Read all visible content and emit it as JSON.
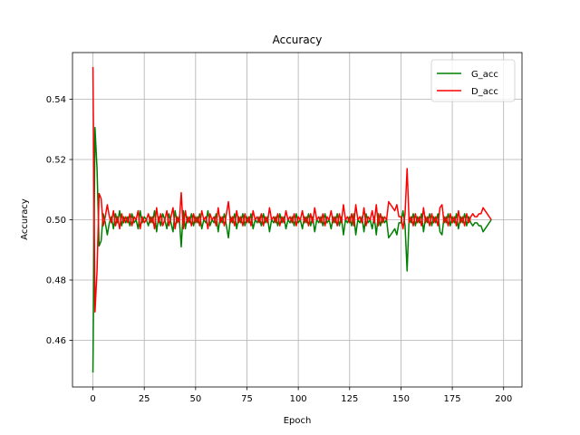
{
  "chart_data": {
    "type": "line",
    "title": "Accuracy",
    "xlabel": "Epoch",
    "ylabel": "Accuracy",
    "xlim": [
      -9.95,
      208.95
    ],
    "ylim": [
      0.4445,
      0.5555
    ],
    "xticks": [
      0,
      25,
      50,
      75,
      100,
      125,
      150,
      175,
      200
    ],
    "yticks": [
      0.46,
      0.48,
      0.5,
      0.52,
      0.54
    ],
    "ytick_labels": [
      "0.46",
      "0.48",
      "0.50",
      "0.52",
      "0.54"
    ],
    "grid": true,
    "legend_position": "upper right",
    "series": [
      {
        "name": "G_acc",
        "color": "#008000",
        "values": [
          0.4493,
          0.5306,
          0.517,
          0.4913,
          0.493,
          0.502,
          0.499,
          0.495,
          0.499,
          0.501,
          0.497,
          0.502,
          0.499,
          0.503,
          0.498,
          0.501,
          0.499,
          0.501,
          0.498,
          0.502,
          0.499,
          0.5,
          0.497,
          0.503,
          0.499,
          0.501,
          0.5,
          0.498,
          0.501,
          0.499,
          0.503,
          0.496,
          0.501,
          0.498,
          0.502,
          0.5,
          0.497,
          0.502,
          0.499,
          0.496,
          0.503,
          0.499,
          0.501,
          0.491,
          0.503,
          0.497,
          0.501,
          0.499,
          0.502,
          0.498,
          0.501,
          0.499,
          0.502,
          0.497,
          0.5,
          0.499,
          0.503,
          0.498,
          0.5,
          0.499,
          0.502,
          0.496,
          0.501,
          0.499,
          0.502,
          0.498,
          0.494,
          0.501,
          0.499,
          0.502,
          0.497,
          0.501,
          0.499,
          0.502,
          0.498,
          0.501,
          0.499,
          0.502,
          0.497,
          0.5,
          0.499,
          0.501,
          0.498,
          0.502,
          0.499,
          0.501,
          0.496,
          0.5,
          0.499,
          0.501,
          0.498,
          0.502,
          0.499,
          0.501,
          0.497,
          0.5,
          0.499,
          0.501,
          0.498,
          0.502,
          0.499,
          0.5,
          0.497,
          0.501,
          0.499,
          0.502,
          0.498,
          0.501,
          0.496,
          0.5,
          0.499,
          0.501,
          0.498,
          0.502,
          0.499,
          0.5,
          0.497,
          0.501,
          0.499,
          0.502,
          0.498,
          0.501,
          0.495,
          0.5,
          0.499,
          0.501,
          0.498,
          0.502,
          0.495,
          0.5,
          0.499,
          0.501,
          0.496,
          0.502,
          0.499,
          0.5,
          0.497,
          0.501,
          0.495,
          0.502,
          0.498,
          0.501,
          0.499,
          0.5,
          0.494,
          0.495,
          0.496,
          0.497,
          0.495,
          0.499,
          0.499,
          0.503,
          0.498,
          0.483,
          0.501,
          0.499,
          0.502,
          0.498,
          0.501,
          0.499,
          0.502,
          0.496,
          0.501,
          0.499,
          0.502,
          0.498,
          0.501,
          0.499,
          0.502,
          0.496,
          0.495,
          0.501,
          0.499,
          0.502,
          0.498,
          0.501,
          0.499,
          0.502,
          0.497,
          0.501,
          0.499,
          0.502,
          0.498,
          0.501,
          0.499,
          0.498,
          0.499,
          0.499,
          0.498,
          0.498,
          0.496,
          0.497,
          0.498,
          0.499,
          0.5
        ]
      },
      {
        "name": "D_acc",
        "color": "#ff0000",
        "values": [
          0.5507,
          0.4694,
          0.483,
          0.5087,
          0.507,
          0.498,
          0.501,
          0.505,
          0.501,
          0.499,
          0.503,
          0.498,
          0.501,
          0.497,
          0.502,
          0.499,
          0.501,
          0.499,
          0.502,
          0.498,
          0.501,
          0.5,
          0.503,
          0.497,
          0.501,
          0.499,
          0.5,
          0.502,
          0.499,
          0.501,
          0.497,
          0.504,
          0.499,
          0.502,
          0.498,
          0.5,
          0.503,
          0.498,
          0.501,
          0.504,
          0.497,
          0.501,
          0.499,
          0.509,
          0.497,
          0.503,
          0.499,
          0.501,
          0.498,
          0.502,
          0.499,
          0.501,
          0.498,
          0.503,
          0.5,
          0.501,
          0.497,
          0.502,
          0.5,
          0.501,
          0.498,
          0.504,
          0.499,
          0.501,
          0.498,
          0.502,
          0.506,
          0.499,
          0.501,
          0.498,
          0.503,
          0.499,
          0.501,
          0.498,
          0.502,
          0.499,
          0.501,
          0.498,
          0.503,
          0.5,
          0.501,
          0.499,
          0.502,
          0.498,
          0.501,
          0.499,
          0.504,
          0.5,
          0.501,
          0.499,
          0.502,
          0.498,
          0.501,
          0.499,
          0.503,
          0.5,
          0.501,
          0.499,
          0.502,
          0.498,
          0.501,
          0.5,
          0.503,
          0.499,
          0.501,
          0.498,
          0.502,
          0.499,
          0.504,
          0.5,
          0.501,
          0.499,
          0.502,
          0.498,
          0.501,
          0.5,
          0.503,
          0.499,
          0.501,
          0.498,
          0.502,
          0.499,
          0.505,
          0.5,
          0.501,
          0.499,
          0.502,
          0.498,
          0.505,
          0.5,
          0.501,
          0.499,
          0.504,
          0.498,
          0.501,
          0.5,
          0.503,
          0.499,
          0.505,
          0.498,
          0.502,
          0.499,
          0.501,
          0.5,
          0.506,
          0.505,
          0.504,
          0.503,
          0.505,
          0.501,
          0.501,
          0.497,
          0.502,
          0.517,
          0.499,
          0.501,
          0.498,
          0.502,
          0.499,
          0.501,
          0.498,
          0.504,
          0.499,
          0.501,
          0.498,
          0.502,
          0.499,
          0.501,
          0.498,
          0.504,
          0.505,
          0.499,
          0.501,
          0.498,
          0.502,
          0.499,
          0.501,
          0.498,
          0.503,
          0.499,
          0.501,
          0.498,
          0.502,
          0.499,
          0.501,
          0.502,
          0.501,
          0.501,
          0.502,
          0.502,
          0.504,
          0.503,
          0.502,
          0.501,
          0.5
        ]
      }
    ]
  }
}
